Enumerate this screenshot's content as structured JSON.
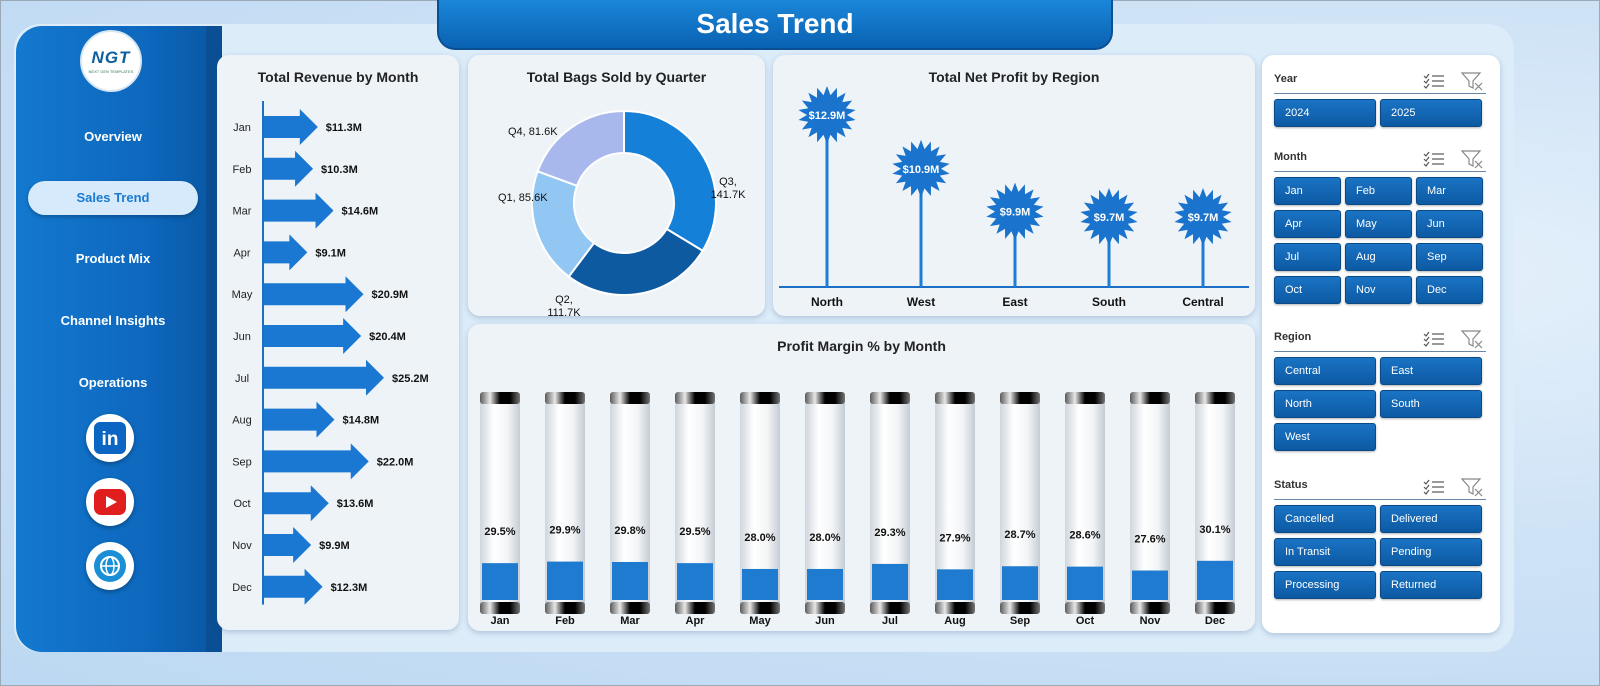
{
  "title": "Sales Trend",
  "logo": {
    "text": "NGT",
    "subtext": "NEXT GEN TEMPLATES"
  },
  "nav": [
    {
      "label": "Overview",
      "active": false
    },
    {
      "label": "Sales Trend",
      "active": true
    },
    {
      "label": "Product Mix",
      "active": false
    },
    {
      "label": "Channel Insights",
      "active": false
    },
    {
      "label": "Operations",
      "active": false
    }
  ],
  "social": [
    {
      "icon": "linkedin-icon",
      "color": "#0a66c2",
      "glyph": "in"
    },
    {
      "icon": "youtube-icon",
      "color": "#e01e1e",
      "glyph": "▶"
    },
    {
      "icon": "globe-icon",
      "color": "#1a8fd6",
      "glyph": "◍"
    }
  ],
  "colors": {
    "primary": "#0d67bd",
    "accent": "#1a7ad0",
    "bar_fill": "#1f7bd0",
    "donut": [
      "#1580d8",
      "#0d5aa0",
      "#92c7f3",
      "#a9b8ec"
    ]
  },
  "chart_data": [
    {
      "type": "bar",
      "orientation": "horizontal",
      "title": "Total Revenue  by Month",
      "categories": [
        "Jan",
        "Feb",
        "Mar",
        "Apr",
        "May",
        "Jun",
        "Jul",
        "Aug",
        "Sep",
        "Oct",
        "Nov",
        "Dec"
      ],
      "values": [
        11.3,
        10.3,
        14.6,
        9.1,
        20.9,
        20.4,
        25.2,
        14.8,
        22.0,
        13.6,
        9.9,
        12.3
      ],
      "labels": [
        "$11.3M",
        "$10.3M",
        "$14.6M",
        "$9.1M",
        "$20.9M",
        "$20.4M",
        "$25.2M",
        "$14.8M",
        "$22.0M",
        "$13.6M",
        "$9.9M",
        "$12.3M"
      ],
      "unit": "$M"
    },
    {
      "type": "pie",
      "style": "donut",
      "title": "Total Bags Sold by Quarter",
      "categories": [
        "Q3",
        "Q2",
        "Q1",
        "Q4"
      ],
      "values": [
        141.7,
        111.7,
        85.6,
        81.6
      ],
      "labels": [
        "Q3, 141.7K",
        "Q2, 111.7K",
        "Q1, 85.6K",
        "Q4, 81.6K"
      ]
    },
    {
      "type": "bar",
      "style": "lollipop",
      "title": "Total Net Profit by Region",
      "categories": [
        "North",
        "West",
        "East",
        "South",
        "Central"
      ],
      "values": [
        12.9,
        10.9,
        9.9,
        9.7,
        9.7
      ],
      "labels": [
        "$12.9M",
        "$10.9M",
        "$9.9M",
        "$9.7M",
        "$9.7M"
      ]
    },
    {
      "type": "bar",
      "style": "cylinder",
      "title": "Profit Margin % by Month",
      "categories": [
        "Jan",
        "Feb",
        "Mar",
        "Apr",
        "May",
        "Jun",
        "Jul",
        "Aug",
        "Sep",
        "Oct",
        "Nov",
        "Dec"
      ],
      "values": [
        29.5,
        29.9,
        29.8,
        29.5,
        28.0,
        28.0,
        29.3,
        27.9,
        28.7,
        28.6,
        27.6,
        30.1
      ],
      "labels": [
        "29.5%",
        "29.9%",
        "29.8%",
        "29.5%",
        "28.0%",
        "28.0%",
        "29.3%",
        "27.9%",
        "28.7%",
        "28.6%",
        "27.6%",
        "30.1%"
      ]
    }
  ],
  "slicers": [
    {
      "label": "Year",
      "items": [
        "2024",
        "2025"
      ],
      "columns": 2
    },
    {
      "label": "Month",
      "items": [
        "Jan",
        "Feb",
        "Mar",
        "Apr",
        "May",
        "Jun",
        "Jul",
        "Aug",
        "Sep",
        "Oct",
        "Nov",
        "Dec"
      ],
      "columns": 3
    },
    {
      "label": "Region",
      "items": [
        "Central",
        "East",
        "North",
        "South",
        "West"
      ],
      "columns": 2
    },
    {
      "label": "Status",
      "items": [
        "Cancelled",
        "Delivered",
        "In Transit",
        "Pending",
        "Processing",
        "Returned"
      ],
      "columns": 2
    }
  ]
}
